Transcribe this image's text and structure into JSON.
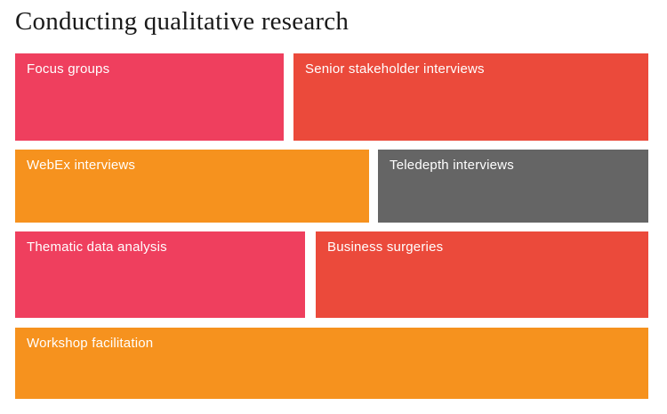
{
  "page": {
    "title": "Conducting qualitative research"
  },
  "colors": {
    "pink": "#EF3F5E",
    "red": "#EB4A3B",
    "orange": "#F6921E",
    "gray": "#656565",
    "title_text": "#1a1a1a",
    "cell_text": "#ffffff",
    "background": "#ffffff"
  },
  "chart_data": {
    "type": "treemap",
    "title": "Conducting qualitative research",
    "legend": "none",
    "axes": "none",
    "layout_rows": 4,
    "cells": [
      {
        "label": "Focus groups",
        "color": "#EF3F5E",
        "row": 1,
        "col": 1,
        "rel_width": 0.42,
        "rel_height": 0.27
      },
      {
        "label": "Senior stakeholder interviews",
        "color": "#EB4A3B",
        "row": 1,
        "col": 2,
        "rel_width": 0.56,
        "rel_height": 0.27
      },
      {
        "label": "WebEx interviews",
        "color": "#F6921E",
        "row": 2,
        "col": 1,
        "rel_width": 0.56,
        "rel_height": 0.23
      },
      {
        "label": "Teledepth interviews",
        "color": "#656565",
        "row": 2,
        "col": 2,
        "rel_width": 0.43,
        "rel_height": 0.23
      },
      {
        "label": "Thematic data analysis",
        "color": "#EF3F5E",
        "row": 3,
        "col": 1,
        "rel_width": 0.46,
        "rel_height": 0.27
      },
      {
        "label": "Business surgeries",
        "color": "#EB4A3B",
        "row": 3,
        "col": 2,
        "rel_width": 0.53,
        "rel_height": 0.27
      },
      {
        "label": "Workshop facilitation",
        "color": "#F6921E",
        "row": 4,
        "col": 1,
        "rel_width": 1.0,
        "rel_height": 0.22
      }
    ]
  }
}
